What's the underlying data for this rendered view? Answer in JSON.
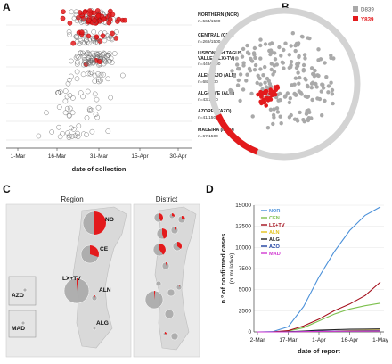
{
  "panels": {
    "a": "A",
    "b": "B",
    "c": "C",
    "d": "D"
  },
  "colors": {
    "mutant": "#e31a1c",
    "wildtype": "#a9a9a9",
    "wildtype_stroke": "#6e6e6e",
    "map_land": "#d8d8d8",
    "map_sea": "#ebebeb"
  },
  "panel_a": {
    "xlabel": "date of collection",
    "xticks": [
      "1-Mar",
      "16-Mar",
      "31-Mar",
      "15-Apr",
      "30-Apr"
    ],
    "regions": [
      {
        "name": "NORTHERN (NOR)",
        "n_label": "n=564/1500",
        "n_sampled": 564,
        "red_fraction": 0.5
      },
      {
        "name": "CENTRAL (CEN)",
        "n_label": "n=269/1500",
        "n_sampled": 269,
        "red_fraction": 0.3
      },
      {
        "name_line1": "LISBON and TAGUS",
        "name_line2": "VALLEY (LX+TV)",
        "n_label": "n=449/1500",
        "n_sampled": 449,
        "red_fraction": 0.03
      },
      {
        "name": "ALENTEJO (ALN)",
        "n_label": "n=68/1500",
        "n_sampled": 68,
        "red_fraction": 0.03
      },
      {
        "name": "ALGARVE (ALG)",
        "n_label": "n=43/1500",
        "n_sampled": 43,
        "red_fraction": 0.0
      },
      {
        "name": "AZORES (AZO)",
        "n_label": "n=41/1500",
        "n_sampled": 41,
        "red_fraction": 0.0
      },
      {
        "name": "MADEIRA (MAD)",
        "n_label": "n=67/1500",
        "n_sampled": 67,
        "red_fraction": 0.0
      }
    ]
  },
  "panel_b": {
    "legend": [
      {
        "label": "D839",
        "color": "#a9a9a9"
      },
      {
        "label": "Y839",
        "color": "#e31a1c"
      }
    ],
    "ring_red_fraction": 0.12
  },
  "panel_c": {
    "region_title": "Region",
    "district_title": "District",
    "region_labels": [
      "NO",
      "CE",
      "LX+TV",
      "ALN",
      "ALG",
      "AZO",
      "MAD"
    ],
    "region_pies": [
      {
        "label": "NO",
        "red_fraction": 0.5
      },
      {
        "label": "CE",
        "red_fraction": 0.3
      },
      {
        "label": "LX+TV",
        "red_fraction": 0.02
      },
      {
        "label": "ALN",
        "red_fraction": 0.05
      },
      {
        "label": "ALG",
        "red_fraction": 0.0
      },
      {
        "label": "AZO",
        "red_fraction": 0.0
      },
      {
        "label": "MAD",
        "red_fraction": 0.0
      }
    ]
  },
  "chart_data": {
    "type": "line",
    "title": "",
    "xlabel": "date of report",
    "ylabel_line1": "n.º of confirmed cases",
    "ylabel_line2": "(cumulative)",
    "x_ticks": [
      "2-Mar",
      "17-Mar",
      "1-Apr",
      "16-Apr",
      "1-May"
    ],
    "y_ticks": [
      "0",
      "2500",
      "5000",
      "7500",
      "10000",
      "12500",
      "15000"
    ],
    "x": [
      "2-Mar",
      "9-Mar",
      "17-Mar",
      "24-Mar",
      "1-Apr",
      "8-Apr",
      "16-Apr",
      "23-Apr",
      "1-May"
    ],
    "ylim": [
      0,
      15000
    ],
    "legend_position": "top-left",
    "series": [
      {
        "name": "NOR",
        "color": "#4a90d9",
        "values": [
          0,
          40,
          600,
          3000,
          6500,
          9500,
          12000,
          13800,
          14800
        ]
      },
      {
        "name": "CEN",
        "color": "#7cc04d",
        "values": [
          0,
          5,
          100,
          500,
          1300,
          2100,
          2700,
          3100,
          3400
        ]
      },
      {
        "name": "LX+TV",
        "color": "#a30d1a",
        "values": [
          0,
          10,
          150,
          700,
          1500,
          2500,
          3300,
          4300,
          5900
        ]
      },
      {
        "name": "ALN",
        "color": "#e3c21b",
        "values": [
          0,
          0,
          5,
          30,
          70,
          110,
          150,
          180,
          210
        ]
      },
      {
        "name": "ALG",
        "color": "#222222",
        "values": [
          0,
          2,
          20,
          100,
          200,
          260,
          310,
          330,
          345
        ]
      },
      {
        "name": "AZO",
        "color": "#1d3fa0",
        "values": [
          0,
          0,
          10,
          40,
          80,
          100,
          120,
          130,
          140
        ]
      },
      {
        "name": "MAD",
        "color": "#d13ad1",
        "values": [
          0,
          0,
          5,
          30,
          60,
          70,
          80,
          85,
          90
        ]
      }
    ]
  }
}
